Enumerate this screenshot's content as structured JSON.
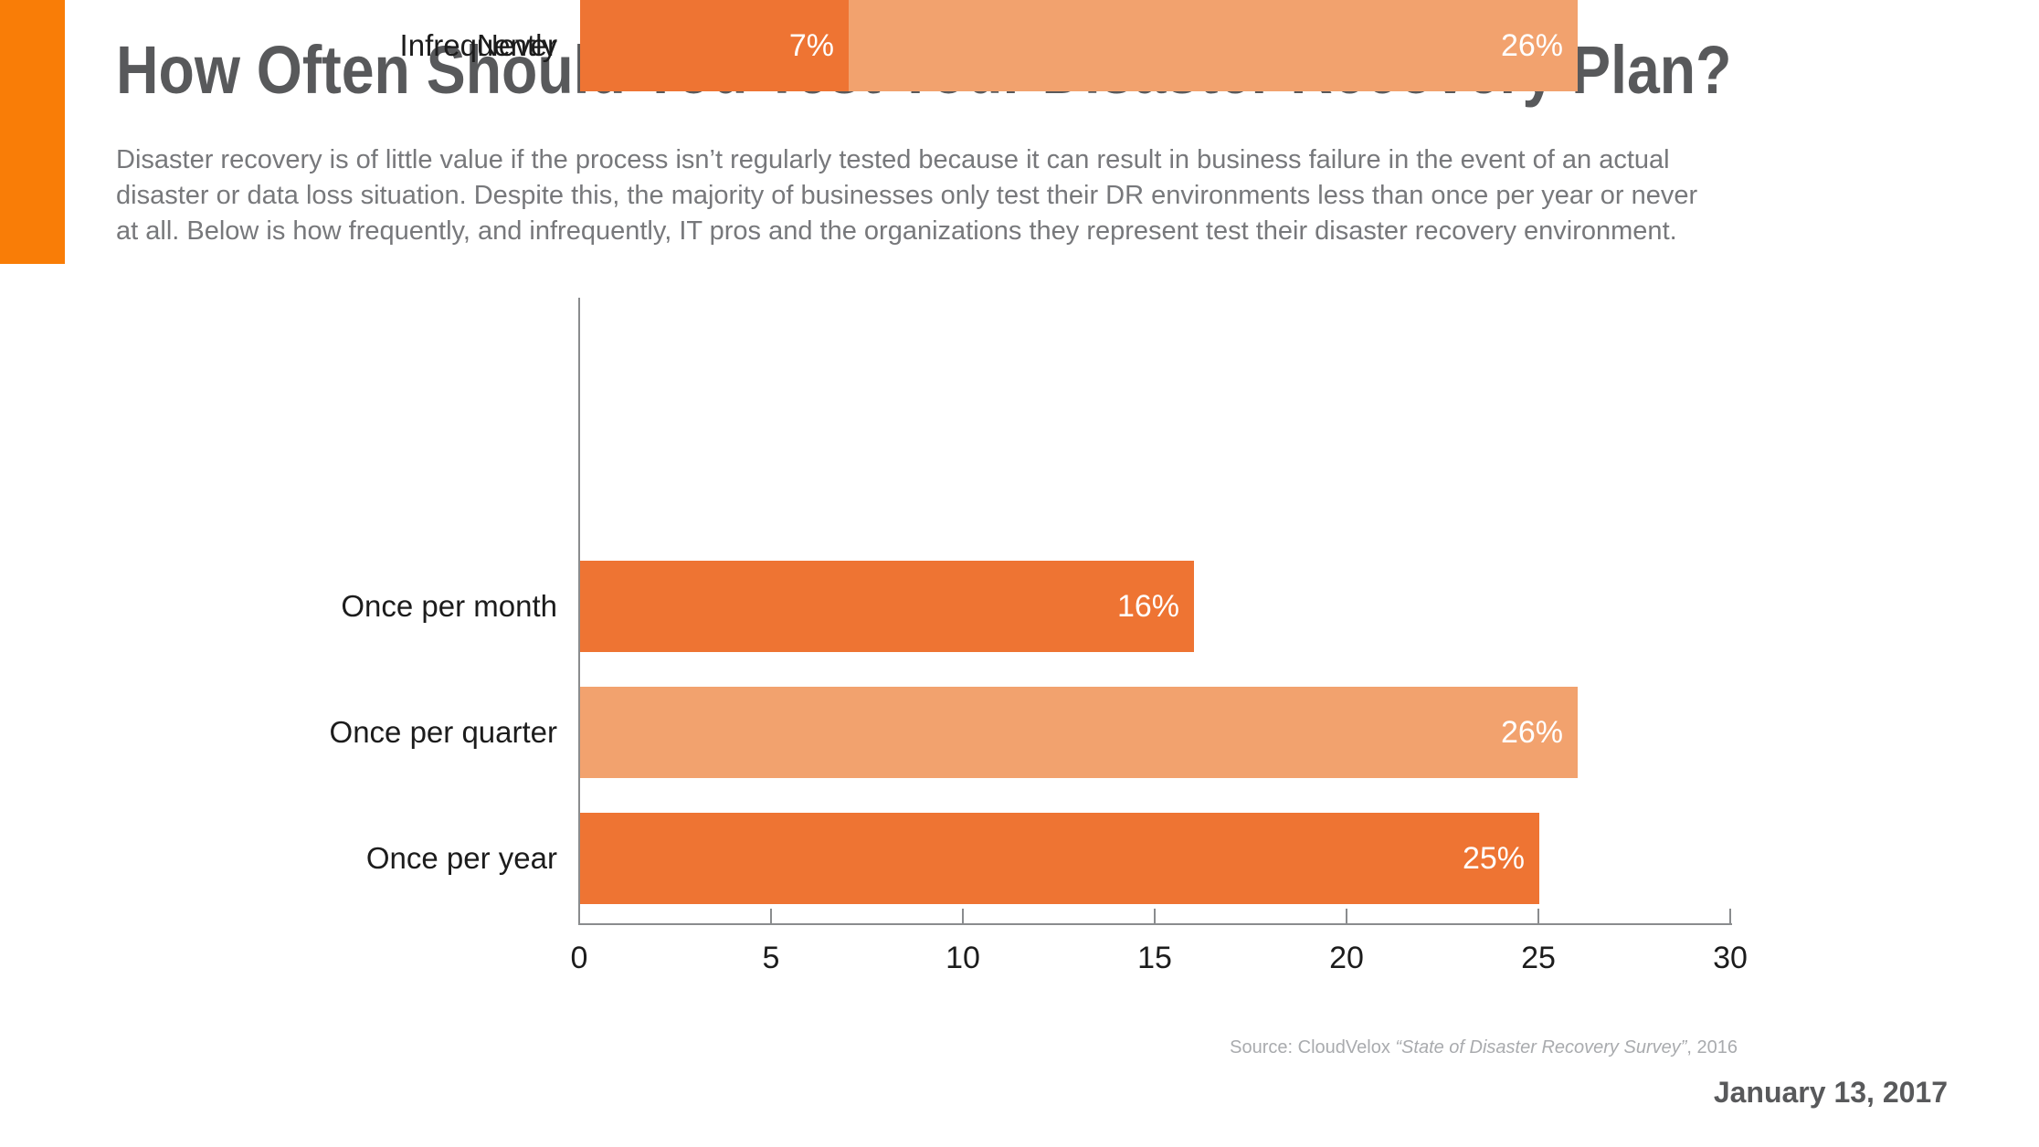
{
  "page": {
    "title": "How Often Should You Test Your Disaster Recovery Plan?",
    "description_lines": [
      "Disaster recovery is of little value if the process isn’t regularly tested because it can result in business failure in the event of an actual",
      "disaster or data loss situation. Despite this, the majority of businesses only test their DR environments less than once per year or never",
      "at all. Below is how frequently, and infrequently, IT pros and the organizations they represent test their disaster recovery environment."
    ],
    "accent_color": "#F97D07",
    "source": {
      "prefix": "Source: CloudVelox ",
      "italic_title": "“State of Disaster Recovery Survey”",
      "suffix": ", 2016"
    },
    "date": "January 13, 2017"
  },
  "chart_data": {
    "type": "bar",
    "orientation": "horizontal",
    "title": "",
    "xlabel": "",
    "ylabel": "",
    "categories": [
      "Once per month",
      "Once per quarter",
      "Once per year",
      "Infrequently",
      "Never"
    ],
    "values": [
      16,
      26,
      25,
      26,
      7
    ],
    "value_labels": [
      "16%",
      "26%",
      "25%",
      "26%",
      "7%"
    ],
    "bar_colors": [
      "#EE7433",
      "#F2A26E",
      "#EE7433",
      "#F2A26E",
      "#EE7433"
    ],
    "value_label_color": "#FFFFFF",
    "value_label_position": "inside-right",
    "xlim": [
      0,
      30
    ],
    "x_ticks": [
      "0",
      "5",
      "10",
      "15",
      "20",
      "25",
      "30"
    ],
    "grid": false,
    "legend": false,
    "axis_color": "#8A8C8E"
  }
}
